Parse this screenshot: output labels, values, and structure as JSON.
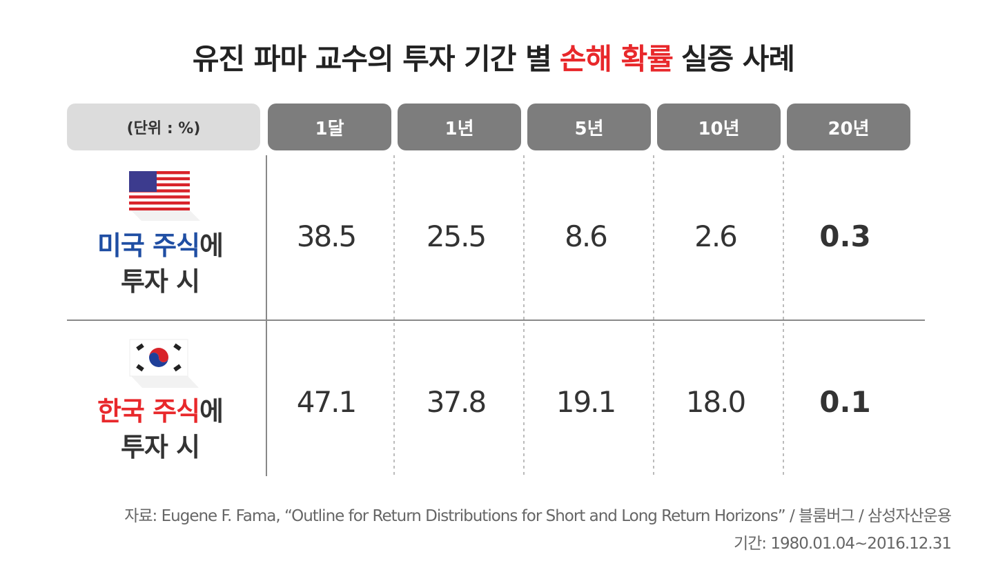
{
  "title": {
    "before": "유진 파마 교수의 투자 기간 별",
    "highlight": "손해 확률",
    "after": "실증 사례"
  },
  "table": {
    "unit": "(단위 : %)",
    "columns": [
      "1달",
      "1년",
      "5년",
      "10년",
      "20년"
    ],
    "rows": [
      {
        "label_highlight": "미국 주식",
        "label_suffix": "에",
        "label_line2": "투자 시",
        "values": [
          "38.5",
          "25.5",
          "8.6",
          "2.6",
          "0.3"
        ]
      },
      {
        "label_highlight": "한국 주식",
        "label_suffix": "에",
        "label_line2": "투자 시",
        "values": [
          "47.1",
          "37.8",
          "19.1",
          "18.0",
          "0.1"
        ]
      }
    ]
  },
  "source": [
    "자료: Eugene F. Fama, “Outline for Return Distributions for Short and Long Return Horizons” / 블룸버그 / 삼성자산운용",
    "기간: 1980.01.04~2016.12.31"
  ]
}
